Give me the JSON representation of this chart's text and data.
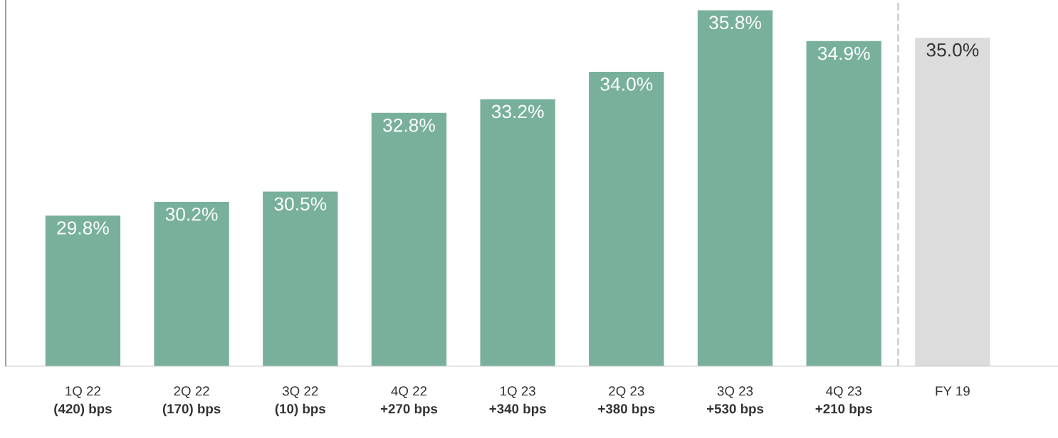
{
  "chart_data": {
    "type": "bar",
    "categories": [
      "1Q 22\n(420) bps",
      "2Q 22\n(170) bps",
      "3Q 22\n(10) bps",
      "4Q 22\n+270 bps",
      "1Q 23\n+340 bps",
      "2Q 23\n+380 bps",
      "3Q 23\n+530 bps",
      "4Q 23\n+210 bps",
      "FY 19"
    ],
    "values": [
      29.8,
      30.2,
      30.5,
      32.8,
      33.2,
      34.0,
      35.8,
      34.9,
      35.0
    ],
    "value_labels": [
      "29.8%",
      "30.2%",
      "30.5%",
      "32.8%",
      "33.2%",
      "34.0%",
      "35.8%",
      "34.9%",
      "35.0%"
    ],
    "colors": [
      "#78b09c",
      "#78b09c",
      "#78b09c",
      "#78b09c",
      "#78b09c",
      "#78b09c",
      "#78b09c",
      "#78b09c",
      "#dcdcdc"
    ],
    "ylim": [
      25.4,
      36.1
    ],
    "tick_labels": "x",
    "grid": false,
    "legend": false
  }
}
